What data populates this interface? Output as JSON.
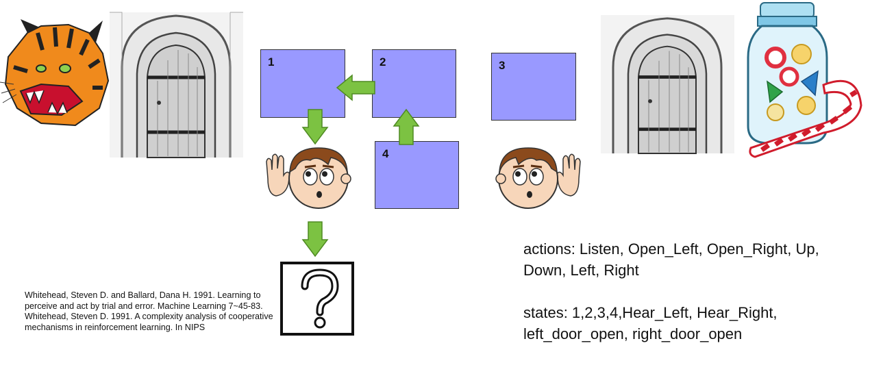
{
  "states": [
    {
      "id": "1",
      "label": "1"
    },
    {
      "id": "2",
      "label": "2"
    },
    {
      "id": "3",
      "label": "3"
    },
    {
      "id": "4",
      "label": "4"
    }
  ],
  "unknown_box": {
    "symbol": "?"
  },
  "actions_text": "actions: Listen, Open_Left, Open_Right, Up, Down, Left, Right",
  "states_text": "states: 1,2,3,4,Hear_Left, Hear_Right, left_door_open, right_door_open",
  "references": [
    "Whitehead, Steven D. and Ballard, Dana H. 1991. Learning to perceive and act by trial and error. Machine Learning 7~45-83.",
    "Whitehead, Steven D. 1991. A complexity analysis of cooperative mechanisms in reinforcement learning. In NIPS"
  ],
  "colors": {
    "state_box": "#9999ff",
    "arrow": "#7cc242",
    "background": "#ffffff"
  },
  "icons": [
    "tiger-icon",
    "door-icon",
    "listening-boy-icon",
    "candy-jar-icon",
    "question-mark-icon"
  ]
}
